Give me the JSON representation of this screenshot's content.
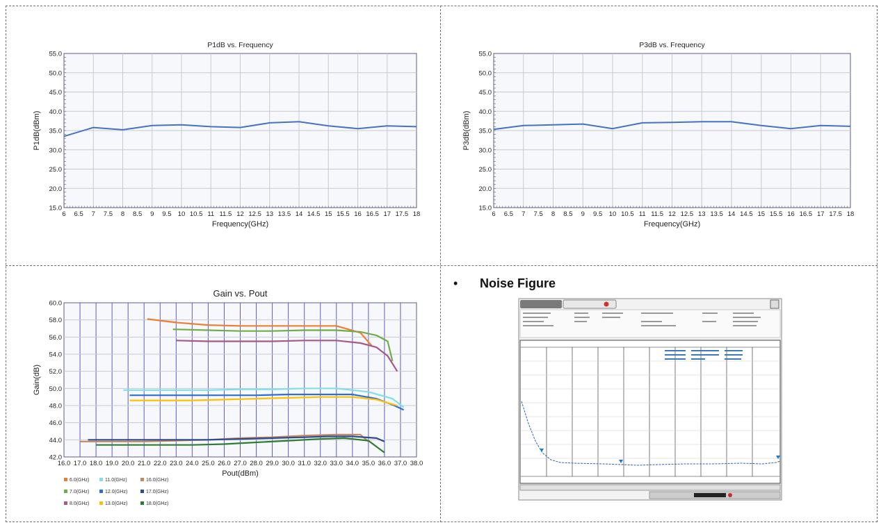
{
  "chart_data": [
    {
      "type": "line",
      "title": "P1dB vs. Frequency",
      "xlabel": "Frequency(GHz)",
      "ylabel": "P1dB(dBm)",
      "xlim": [
        6,
        18
      ],
      "ylim": [
        15,
        55
      ],
      "x_ticks": [
        "6",
        "6.5",
        "7",
        "7.5",
        "8",
        "8.5",
        "9",
        "9.5",
        "10",
        "10.5",
        "11",
        "11.5",
        "12",
        "12.5",
        "13",
        "13.5",
        "14",
        "14.5",
        "15",
        "15.5",
        "16",
        "16.5",
        "17",
        "17.5",
        "18"
      ],
      "y_ticks": [
        "15.0",
        "20.0",
        "25.0",
        "30.0",
        "35.0",
        "40.0",
        "45.0",
        "50.0",
        "55.0"
      ],
      "grid": true,
      "series": [
        {
          "color": "#4472c4",
          "x": [
            6,
            7,
            8,
            9,
            10,
            11,
            12,
            13,
            14,
            15,
            16,
            17,
            18
          ],
          "y": [
            33.5,
            35.8,
            35.2,
            36.3,
            36.5,
            36.0,
            35.8,
            37.0,
            37.3,
            36.2,
            35.5,
            36.2,
            36.0
          ]
        }
      ]
    },
    {
      "type": "line",
      "title": "P3dB vs. Frequency",
      "xlabel": "Frequency(GHz)",
      "ylabel": "P3dB(dBm)",
      "xlim": [
        6,
        18
      ],
      "ylim": [
        15,
        55
      ],
      "x_ticks": [
        "6",
        "6.5",
        "7",
        "7.5",
        "8",
        "8.5",
        "9",
        "9.5",
        "10",
        "10.5",
        "11",
        "11.5",
        "12",
        "12.5",
        "13",
        "13.5",
        "14",
        "14.5",
        "15",
        "15.5",
        "16",
        "16.5",
        "17",
        "17.5",
        "18"
      ],
      "y_ticks": [
        "15.0",
        "20.0",
        "25.0",
        "30.0",
        "35.0",
        "40.0",
        "45.0",
        "50.0",
        "55.0"
      ],
      "grid": true,
      "series": [
        {
          "color": "#4472c4",
          "x": [
            6,
            7,
            8,
            9,
            10,
            11,
            12,
            13,
            14,
            15,
            16,
            17,
            18
          ],
          "y": [
            35.3,
            36.3,
            36.5,
            36.7,
            35.5,
            37.0,
            37.1,
            37.3,
            37.3,
            36.3,
            35.5,
            36.3,
            36.1
          ]
        }
      ]
    },
    {
      "type": "line",
      "title": "Gain vs. Pout",
      "xlabel": "Pout(dBm)",
      "ylabel": "Gain(dB)",
      "xlim": [
        16,
        38
      ],
      "ylim": [
        42,
        60
      ],
      "x_ticks": [
        "16.0",
        "17.0",
        "18.0",
        "19.0",
        "20.0",
        "21.0",
        "22.0",
        "23.0",
        "24.0",
        "25.0",
        "26.0",
        "27.0",
        "28.0",
        "29.0",
        "30.0",
        "31.0",
        "32.0",
        "33.0",
        "34.0",
        "35.0",
        "36.0",
        "37.0",
        "38.0"
      ],
      "y_ticks": [
        "42.0",
        "44.0",
        "46.0",
        "48.0",
        "50.0",
        "52.0",
        "54.0",
        "56.0",
        "58.0",
        "60.0"
      ],
      "grid": true,
      "legend_position": "bottom-left",
      "series": [
        {
          "name": "6.0(GHz)",
          "color": "#ed7d31",
          "x": [
            21.2,
            23,
            25,
            27,
            29,
            31,
            33,
            34.5,
            35.2
          ],
          "y": [
            58.1,
            57.7,
            57.4,
            57.3,
            57.3,
            57.3,
            57.3,
            56.5,
            55.0
          ]
        },
        {
          "name": "7.0(GHz)",
          "color": "#70ad47",
          "x": [
            22.8,
            25,
            27,
            29,
            31,
            33,
            34.5,
            35.5,
            36.2,
            36.5
          ],
          "y": [
            56.9,
            56.8,
            56.7,
            56.7,
            56.8,
            56.8,
            56.6,
            56.2,
            55.5,
            53.2
          ]
        },
        {
          "name": "8.0(GHz)",
          "color": "#a5588c",
          "x": [
            23,
            25,
            27,
            29,
            31,
            33,
            34.5,
            35.5,
            36.2,
            36.8
          ],
          "y": [
            55.6,
            55.5,
            55.5,
            55.5,
            55.6,
            55.6,
            55.3,
            54.8,
            53.8,
            52.0
          ]
        },
        {
          "name": "11.0(GHz)",
          "color": "#7fdfe8",
          "x": [
            19.7,
            21,
            23,
            25,
            27,
            29,
            31,
            33,
            35,
            36.5,
            37.2
          ],
          "y": [
            49.8,
            49.8,
            49.8,
            49.8,
            49.9,
            49.9,
            50.0,
            50.0,
            49.6,
            48.8,
            47.8
          ]
        },
        {
          "name": "12.0(GHz)",
          "color": "#2f6fd1",
          "x": [
            20.1,
            22,
            24,
            26,
            28,
            30,
            32,
            34,
            35.5,
            36.5,
            37.2
          ],
          "y": [
            49.2,
            49.2,
            49.2,
            49.2,
            49.2,
            49.3,
            49.3,
            49.3,
            48.8,
            48.1,
            47.5
          ]
        },
        {
          "name": "13.0(GHz)",
          "color": "#ffc000",
          "x": [
            20.1,
            22,
            24,
            26,
            28,
            30,
            32,
            34,
            35.5,
            36.8
          ],
          "y": [
            48.6,
            48.6,
            48.6,
            48.7,
            48.8,
            48.9,
            49.0,
            49.0,
            48.7,
            48.0
          ]
        },
        {
          "name": "16.0(GHz)",
          "color": "#c5885c",
          "x": [
            17.0,
            19,
            21,
            23,
            25,
            27,
            29,
            31,
            33,
            34.5,
            35.0
          ],
          "y": [
            43.8,
            43.8,
            43.8,
            43.9,
            44.0,
            44.2,
            44.3,
            44.5,
            44.6,
            44.6,
            43.8
          ]
        },
        {
          "name": "17.0(GHz)",
          "color": "#2e4b8f",
          "x": [
            17.5,
            19,
            21,
            23,
            25,
            27,
            29,
            31,
            32.5,
            34,
            35.5,
            36.0
          ],
          "y": [
            44.0,
            44.0,
            44.0,
            44.0,
            44.0,
            44.1,
            44.2,
            44.3,
            44.4,
            44.4,
            44.2,
            43.8
          ]
        },
        {
          "name": "18.0(GHz)",
          "color": "#2e7d32",
          "x": [
            18.0,
            20,
            22,
            24,
            26,
            28,
            30,
            32,
            33.5,
            35,
            36.0
          ],
          "y": [
            43.4,
            43.4,
            43.4,
            43.4,
            43.5,
            43.7,
            43.9,
            44.1,
            44.2,
            43.9,
            42.5
          ]
        }
      ]
    }
  ],
  "noise_figure": {
    "heading": "Noise Figure"
  }
}
